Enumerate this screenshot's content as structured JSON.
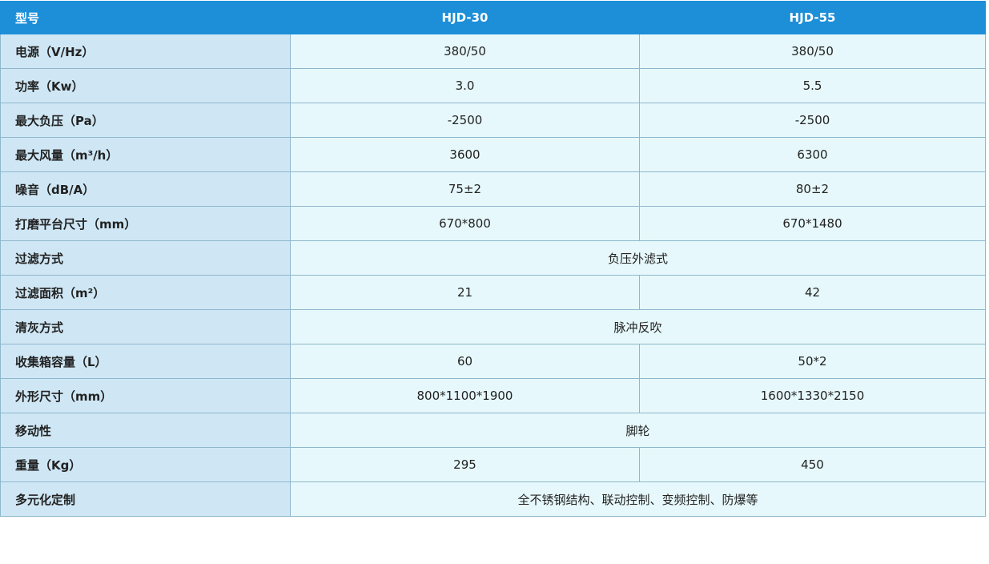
{
  "table": {
    "header": [
      "型号",
      "HJD-30",
      "HJD-55"
    ],
    "rows": [
      [
        "电源（V/Hz）",
        "380/50",
        "380/50"
      ],
      [
        "功率（Kw）",
        "3.0",
        "5.5"
      ],
      [
        "最大负压（Pa）",
        "-2500",
        "-2500"
      ],
      [
        "最大风量（m³/h）",
        "3600",
        "6300"
      ],
      [
        "噪音（dB/A）",
        "75±2",
        "80±2"
      ],
      [
        "打磨平台尺寸（mm）",
        "670*800",
        "670*1480"
      ],
      [
        "过滤方式",
        "负压外滤式"
      ],
      [
        "过滤面积（m²）",
        "21",
        "42"
      ],
      [
        "清灰方式",
        "脉冲反吹"
      ],
      [
        "收集箱容量（L）",
        "60",
        "50*2"
      ],
      [
        "外形尺寸（mm）",
        "800*1100*1900",
        "1600*1330*2150"
      ],
      [
        "移动性",
        "脚轮"
      ],
      [
        "重量（Kg）",
        "295",
        "450"
      ],
      [
        "多元化定制",
        "全不锈钢结构、联动控制、变频控制、防爆等"
      ]
    ]
  }
}
